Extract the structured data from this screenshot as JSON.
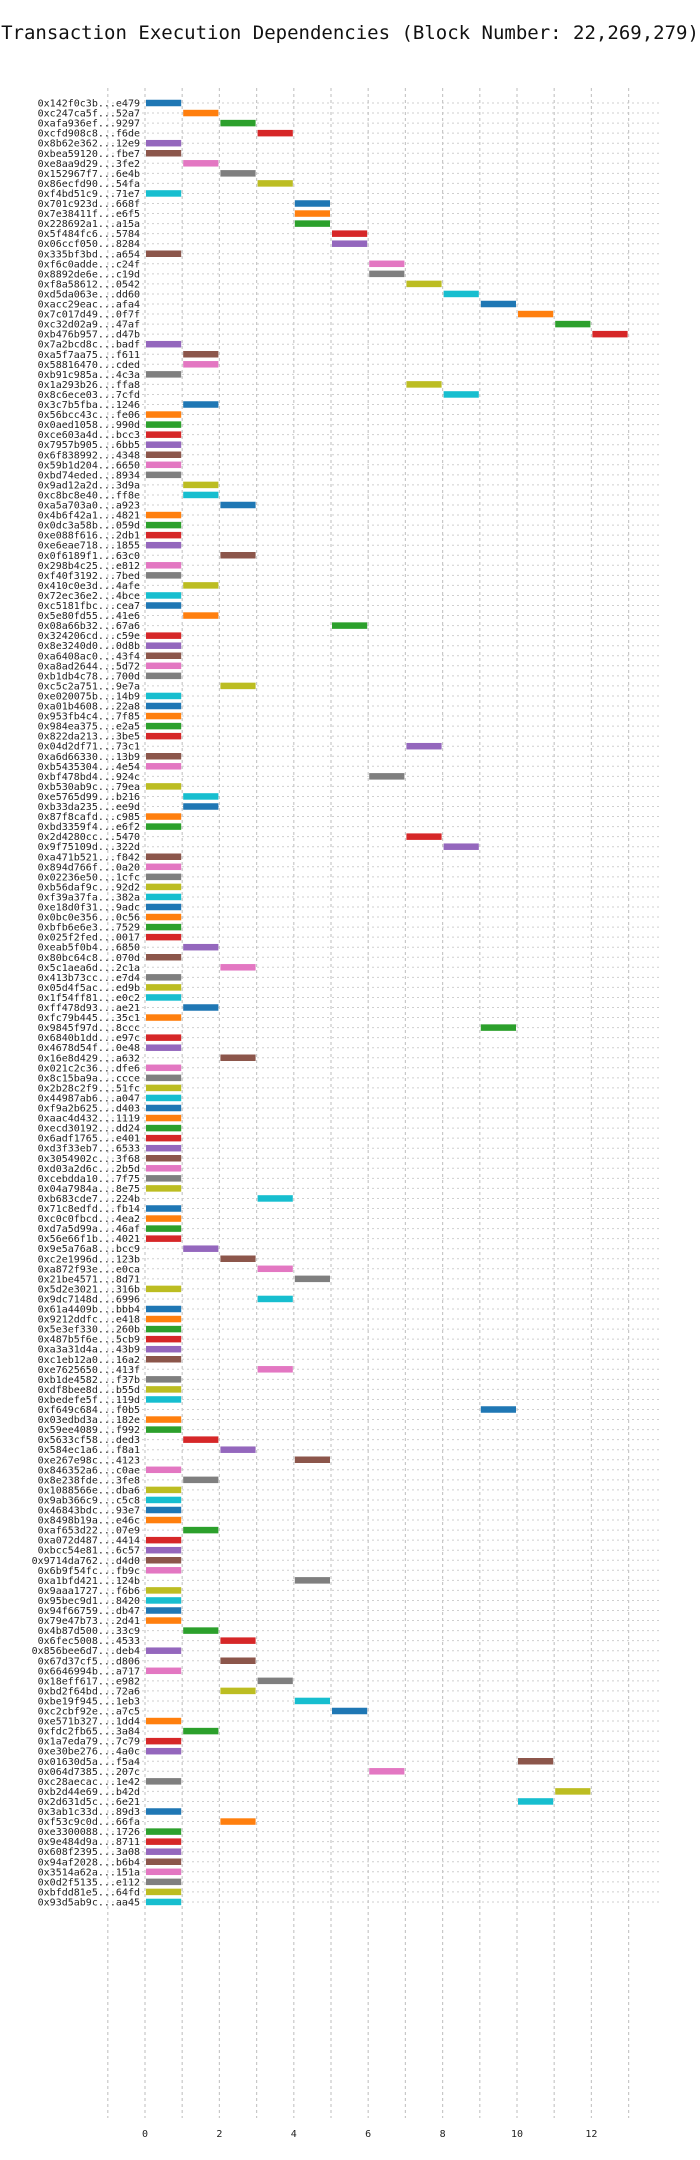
{
  "chart_data": {
    "type": "bar",
    "subtype": "gantt",
    "title": "Transaction Execution Dependencies (Block Number: 22,269,279)",
    "xlabel": "",
    "ylabel": "",
    "xlim": [
      -1,
      13.9
    ],
    "xticks": [
      0,
      2,
      4,
      6,
      8,
      10,
      12
    ],
    "grid": true,
    "palette": [
      "#1f77b4",
      "#ff7f0e",
      "#2ca02c",
      "#d62728",
      "#9467bd",
      "#8c564b",
      "#e377c2",
      "#7f7f7f",
      "#bcbd22",
      "#17becf"
    ],
    "transactions": [
      {
        "label": "0x142f0c3b...e479",
        "start": 0,
        "end": 1
      },
      {
        "label": "0xc247ca5f...52a7",
        "start": 1,
        "end": 2
      },
      {
        "label": "0xafa936ef...9297",
        "start": 2,
        "end": 3
      },
      {
        "label": "0xcfd908c8...f6de",
        "start": 3,
        "end": 4
      },
      {
        "label": "0x8b62e362...12e9",
        "start": 0,
        "end": 1
      },
      {
        "label": "0xbea59120...fbe7",
        "start": 0,
        "end": 1
      },
      {
        "label": "0xe8aa9d29...3fe2",
        "start": 1,
        "end": 2
      },
      {
        "label": "0x152967f7...6e4b",
        "start": 2,
        "end": 3
      },
      {
        "label": "0x86ecfd90...54fa",
        "start": 3,
        "end": 4
      },
      {
        "label": "0xf4bd51c9...71e7",
        "start": 0,
        "end": 1
      },
      {
        "label": "0x701c923d...668f",
        "start": 4,
        "end": 5
      },
      {
        "label": "0x7e38411f...e6f5",
        "start": 4,
        "end": 5
      },
      {
        "label": "0x228692a1...a15a",
        "start": 4,
        "end": 5
      },
      {
        "label": "0x5f484fc6...5784",
        "start": 5,
        "end": 6
      },
      {
        "label": "0x06ccf050...8284",
        "start": 5,
        "end": 6
      },
      {
        "label": "0x335bf3bd...a654",
        "start": 0,
        "end": 1
      },
      {
        "label": "0xf6c0adde...c24f",
        "start": 6,
        "end": 7
      },
      {
        "label": "0x8892de6e...c19d",
        "start": 6,
        "end": 7
      },
      {
        "label": "0xf8a58612...0542",
        "start": 7,
        "end": 8
      },
      {
        "label": "0xd5da063e...dd60",
        "start": 8,
        "end": 9
      },
      {
        "label": "0xacc29eac...afa4",
        "start": 9,
        "end": 10
      },
      {
        "label": "0x7c017d49...0f7f",
        "start": 10,
        "end": 11
      },
      {
        "label": "0xc32d02a9...47af",
        "start": 11,
        "end": 12
      },
      {
        "label": "0xb476b957...d47b",
        "start": 12,
        "end": 13
      },
      {
        "label": "0x7a2bcd8c...badf",
        "start": 0,
        "end": 1
      },
      {
        "label": "0xa5f7aa75...f611",
        "start": 1,
        "end": 2
      },
      {
        "label": "0x58816470...cded",
        "start": 1,
        "end": 2
      },
      {
        "label": "0xb91c985a...4c3a",
        "start": 0,
        "end": 1
      },
      {
        "label": "0x1a293b26...ffa8",
        "start": 7,
        "end": 8
      },
      {
        "label": "0x8c6ece03...7cfd",
        "start": 8,
        "end": 9
      },
      {
        "label": "0x3c7b5fba...1246",
        "start": 1,
        "end": 2
      },
      {
        "label": "0x56bcc43c...fe06",
        "start": 0,
        "end": 1
      },
      {
        "label": "0x0aed1058...990d",
        "start": 0,
        "end": 1
      },
      {
        "label": "0xce603a4d...bcc3",
        "start": 0,
        "end": 1
      },
      {
        "label": "0x7957b905...6bb5",
        "start": 0,
        "end": 1
      },
      {
        "label": "0x6f838992...4348",
        "start": 0,
        "end": 1
      },
      {
        "label": "0x59b1d204...6650",
        "start": 0,
        "end": 1
      },
      {
        "label": "0xbd74eded...8934",
        "start": 0,
        "end": 1
      },
      {
        "label": "0x9ad12a2d...3d9a",
        "start": 1,
        "end": 2
      },
      {
        "label": "0xc8bc8e40...ff8e",
        "start": 1,
        "end": 2
      },
      {
        "label": "0xa5a703a0...a923",
        "start": 2,
        "end": 3
      },
      {
        "label": "0x4b6f42a1...4821",
        "start": 0,
        "end": 1
      },
      {
        "label": "0x0dc3a58b...059d",
        "start": 0,
        "end": 1
      },
      {
        "label": "0xe088f616...2db1",
        "start": 0,
        "end": 1
      },
      {
        "label": "0xe6eae718...1855",
        "start": 0,
        "end": 1
      },
      {
        "label": "0x0f6189f1...63c0",
        "start": 2,
        "end": 3
      },
      {
        "label": "0x298b4c25...e812",
        "start": 0,
        "end": 1
      },
      {
        "label": "0xf40f3192...7bed",
        "start": 0,
        "end": 1
      },
      {
        "label": "0x410c0e3d...4afe",
        "start": 1,
        "end": 2
      },
      {
        "label": "0x72ec36e2...4bce",
        "start": 0,
        "end": 1
      },
      {
        "label": "0xc5181fbc...cea7",
        "start": 0,
        "end": 1
      },
      {
        "label": "0x5e80fd55...41e6",
        "start": 1,
        "end": 2
      },
      {
        "label": "0x08a66b32...67a6",
        "start": 5,
        "end": 6
      },
      {
        "label": "0x324206cd...c59e",
        "start": 0,
        "end": 1
      },
      {
        "label": "0x8e3240d0...0d8b",
        "start": 0,
        "end": 1
      },
      {
        "label": "0xa6408ac0...43f4",
        "start": 0,
        "end": 1
      },
      {
        "label": "0xa8ad2644...5d72",
        "start": 0,
        "end": 1
      },
      {
        "label": "0xb1db4c78...700d",
        "start": 0,
        "end": 1
      },
      {
        "label": "0xc5c2a751...9e7a",
        "start": 2,
        "end": 3
      },
      {
        "label": "0xe020075b...14b9",
        "start": 0,
        "end": 1
      },
      {
        "label": "0xa01b4608...22a8",
        "start": 0,
        "end": 1
      },
      {
        "label": "0x953fb4c4...7f85",
        "start": 0,
        "end": 1
      },
      {
        "label": "0x984ea375...e2a5",
        "start": 0,
        "end": 1
      },
      {
        "label": "0x822da213...3be5",
        "start": 0,
        "end": 1
      },
      {
        "label": "0x04d2df71...73c1",
        "start": 7,
        "end": 8
      },
      {
        "label": "0xa6d66330...13b9",
        "start": 0,
        "end": 1
      },
      {
        "label": "0xb5435304...4e54",
        "start": 0,
        "end": 1
      },
      {
        "label": "0xbf478bd4...924c",
        "start": 6,
        "end": 7
      },
      {
        "label": "0xb530ab9c...79ea",
        "start": 0,
        "end": 1
      },
      {
        "label": "0xe5765d99...b216",
        "start": 1,
        "end": 2
      },
      {
        "label": "0xb33da235...ee9d",
        "start": 1,
        "end": 2
      },
      {
        "label": "0x87f8cafd...c985",
        "start": 0,
        "end": 1
      },
      {
        "label": "0xbd3359f4...e6f2",
        "start": 0,
        "end": 1
      },
      {
        "label": "0x2d4280cc...5470",
        "start": 7,
        "end": 8
      },
      {
        "label": "0x9f75109d...322d",
        "start": 8,
        "end": 9
      },
      {
        "label": "0xa471b521...f842",
        "start": 0,
        "end": 1
      },
      {
        "label": "0x894d766f...0a20",
        "start": 0,
        "end": 1
      },
      {
        "label": "0x02236e50...1cfc",
        "start": 0,
        "end": 1
      },
      {
        "label": "0xb56daf9c...92d2",
        "start": 0,
        "end": 1
      },
      {
        "label": "0xf39a37fa...382a",
        "start": 0,
        "end": 1
      },
      {
        "label": "0xe18d0f31...9adc",
        "start": 0,
        "end": 1
      },
      {
        "label": "0x0bc0e356...0c56",
        "start": 0,
        "end": 1
      },
      {
        "label": "0xbfb6e6e3...7529",
        "start": 0,
        "end": 1
      },
      {
        "label": "0x025f2fed...0017",
        "start": 0,
        "end": 1
      },
      {
        "label": "0xeab5f0b4...6850",
        "start": 1,
        "end": 2
      },
      {
        "label": "0x80bc64c8...070d",
        "start": 0,
        "end": 1
      },
      {
        "label": "0x5c1aea6d...2c1a",
        "start": 2,
        "end": 3
      },
      {
        "label": "0x413b73cc...e7d4",
        "start": 0,
        "end": 1
      },
      {
        "label": "0x05d4f5ac...ed9b",
        "start": 0,
        "end": 1
      },
      {
        "label": "0x1f54ff81...e0c2",
        "start": 0,
        "end": 1
      },
      {
        "label": "0xff478d93...ae21",
        "start": 1,
        "end": 2
      },
      {
        "label": "0xfc79b445...35c1",
        "start": 0,
        "end": 1
      },
      {
        "label": "0x9845f97d...8ccc",
        "start": 9,
        "end": 10
      },
      {
        "label": "0x6840b1dd...e97c",
        "start": 0,
        "end": 1
      },
      {
        "label": "0x4678d54f...0e48",
        "start": 0,
        "end": 1
      },
      {
        "label": "0x16e8d429...a632",
        "start": 2,
        "end": 3
      },
      {
        "label": "0x021c2c36...dfe6",
        "start": 0,
        "end": 1
      },
      {
        "label": "0x8c15ba9a...ccce",
        "start": 0,
        "end": 1
      },
      {
        "label": "0x2b28c2f9...51fc",
        "start": 0,
        "end": 1
      },
      {
        "label": "0x44987ab6...a047",
        "start": 0,
        "end": 1
      },
      {
        "label": "0xf9a2b625...d403",
        "start": 0,
        "end": 1
      },
      {
        "label": "0xaac4d432...1119",
        "start": 0,
        "end": 1
      },
      {
        "label": "0xecd30192...dd24",
        "start": 0,
        "end": 1
      },
      {
        "label": "0x6adf1765...e401",
        "start": 0,
        "end": 1
      },
      {
        "label": "0xd3f33eb7...6533",
        "start": 0,
        "end": 1
      },
      {
        "label": "0x3054902c...3f68",
        "start": 0,
        "end": 1
      },
      {
        "label": "0xd03a2d6c...2b5d",
        "start": 0,
        "end": 1
      },
      {
        "label": "0xcebdda10...7f75",
        "start": 0,
        "end": 1
      },
      {
        "label": "0x04a7984a...8e75",
        "start": 0,
        "end": 1
      },
      {
        "label": "0xb683cde7...224b",
        "start": 3,
        "end": 4
      },
      {
        "label": "0x71c8edfd...fb14",
        "start": 0,
        "end": 1
      },
      {
        "label": "0xc0c0fbcd...4ea2",
        "start": 0,
        "end": 1
      },
      {
        "label": "0xd7a5d99a...46af",
        "start": 0,
        "end": 1
      },
      {
        "label": "0x56e66f1b...4021",
        "start": 0,
        "end": 1
      },
      {
        "label": "0x9e5a76a8...bcc9",
        "start": 1,
        "end": 2
      },
      {
        "label": "0xc2e1996d...123b",
        "start": 2,
        "end": 3
      },
      {
        "label": "0xa872f93e...e0ca",
        "start": 3,
        "end": 4
      },
      {
        "label": "0x21be4571...8d71",
        "start": 4,
        "end": 5
      },
      {
        "label": "0x5d2e3021...316b",
        "start": 0,
        "end": 1
      },
      {
        "label": "0x9dc7148d...6996",
        "start": 3,
        "end": 4
      },
      {
        "label": "0x61a4409b...bbb4",
        "start": 0,
        "end": 1
      },
      {
        "label": "0x9212ddfc...e418",
        "start": 0,
        "end": 1
      },
      {
        "label": "0x5e3ef330...260b",
        "start": 0,
        "end": 1
      },
      {
        "label": "0x487b5f6e...5cb9",
        "start": 0,
        "end": 1
      },
      {
        "label": "0xa3a31d4a...43b9",
        "start": 0,
        "end": 1
      },
      {
        "label": "0xc1eb12a0...16a2",
        "start": 0,
        "end": 1
      },
      {
        "label": "0xe7625650...413f",
        "start": 3,
        "end": 4
      },
      {
        "label": "0xb1de4582...f37b",
        "start": 0,
        "end": 1
      },
      {
        "label": "0xdf8bee8d...b55d",
        "start": 0,
        "end": 1
      },
      {
        "label": "0xbedefe5f...119d",
        "start": 0,
        "end": 1
      },
      {
        "label": "0xf649c684...f0b5",
        "start": 9,
        "end": 10
      },
      {
        "label": "0x03edbd3a...182e",
        "start": 0,
        "end": 1
      },
      {
        "label": "0x59ee4089...f992",
        "start": 0,
        "end": 1
      },
      {
        "label": "0x5633cf58...ded3",
        "start": 1,
        "end": 2
      },
      {
        "label": "0x584ec1a6...f8a1",
        "start": 2,
        "end": 3
      },
      {
        "label": "0xe267e98c...4123",
        "start": 4,
        "end": 5
      },
      {
        "label": "0x846352a6...c0ae",
        "start": 0,
        "end": 1
      },
      {
        "label": "0x8e238fde...3fe8",
        "start": 1,
        "end": 2
      },
      {
        "label": "0x1088566e...dba6",
        "start": 0,
        "end": 1
      },
      {
        "label": "0x9ab366c9...c5c8",
        "start": 0,
        "end": 1
      },
      {
        "label": "0x46843bdc...93e7",
        "start": 0,
        "end": 1
      },
      {
        "label": "0x8498b19a...e46c",
        "start": 0,
        "end": 1
      },
      {
        "label": "0xaf653d22...07e9",
        "start": 1,
        "end": 2
      },
      {
        "label": "0xa072d487...4414",
        "start": 0,
        "end": 1
      },
      {
        "label": "0xbcc54e81...6c57",
        "start": 0,
        "end": 1
      },
      {
        "label": "0x9714da762...d4d0",
        "start": 0,
        "end": 1
      },
      {
        "label": "0x6b9f54fc...fb9c",
        "start": 0,
        "end": 1
      },
      {
        "label": "0xa1bfd421...124b",
        "start": 4,
        "end": 5
      },
      {
        "label": "0x9aaa1727...f6b6",
        "start": 0,
        "end": 1
      },
      {
        "label": "0x95bec9d1...8420",
        "start": 0,
        "end": 1
      },
      {
        "label": "0x94f66759...db47",
        "start": 0,
        "end": 1
      },
      {
        "label": "0x79e47b73...2d41",
        "start": 0,
        "end": 1
      },
      {
        "label": "0x4b87d500...33c9",
        "start": 1,
        "end": 2
      },
      {
        "label": "0x6fec5008...4533",
        "start": 2,
        "end": 3
      },
      {
        "label": "0x856bee6d7...deb4",
        "start": 0,
        "end": 1
      },
      {
        "label": "0x67d37cf5...d806",
        "start": 2,
        "end": 3
      },
      {
        "label": "0x6646994b...a717",
        "start": 0,
        "end": 1
      },
      {
        "label": "0x18eff617...e982",
        "start": 3,
        "end": 4
      },
      {
        "label": "0xbd2f64bd...72a6",
        "start": 2,
        "end": 3
      },
      {
        "label": "0xbe19f945...1eb3",
        "start": 4,
        "end": 5
      },
      {
        "label": "0xc2cbf92e...a7c5",
        "start": 5,
        "end": 6
      },
      {
        "label": "0xe571b327...1dd4",
        "start": 0,
        "end": 1
      },
      {
        "label": "0xfdc2fb65...3a84",
        "start": 1,
        "end": 2
      },
      {
        "label": "0x1a7eda79...7c79",
        "start": 0,
        "end": 1
      },
      {
        "label": "0xe30be276...4a0c",
        "start": 0,
        "end": 1
      },
      {
        "label": "0x01630d5a...f5a4",
        "start": 10,
        "end": 11
      },
      {
        "label": "0x064d7385...207c",
        "start": 6,
        "end": 7
      },
      {
        "label": "0xc28aecac...1e42",
        "start": 0,
        "end": 1
      },
      {
        "label": "0xb2d44e69...b42d",
        "start": 11,
        "end": 12
      },
      {
        "label": "0x2d631d5c...6e21",
        "start": 10,
        "end": 11
      },
      {
        "label": "0x3ab1c33d...89d3",
        "start": 0,
        "end": 1
      },
      {
        "label": "0xf53c9c0d...66fa",
        "start": 2,
        "end": 3
      },
      {
        "label": "0xe3300088...1726",
        "start": 0,
        "end": 1
      },
      {
        "label": "0x9e484d9a...8711",
        "start": 0,
        "end": 1
      },
      {
        "label": "0x608f2395...3a08",
        "start": 0,
        "end": 1
      },
      {
        "label": "0x94af2028...b6b4",
        "start": 0,
        "end": 1
      },
      {
        "label": "0x3514a62a...151a",
        "start": 0,
        "end": 1
      },
      {
        "label": "0x0d2f5135...e112",
        "start": 0,
        "end": 1
      },
      {
        "label": "0xbfdd81e5...64fd",
        "start": 0,
        "end": 1
      },
      {
        "label": "0x93d5ab9c...aa45",
        "start": 0,
        "end": 1
      }
    ]
  }
}
